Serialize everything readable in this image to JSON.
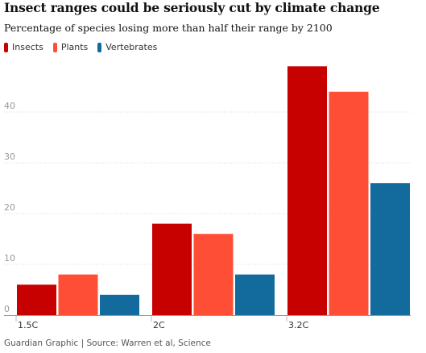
{
  "title": "Insect ranges could be seriously cut by climate change",
  "subtitle": "Percentage of species losing more than half their range by 2100",
  "footer": "Guardian Graphic | Source: Warren et al, Science",
  "chart_data": {
    "type": "bar",
    "title": "Insect ranges could be seriously cut by climate change",
    "subtitle": "Percentage of species losing more than half their range by 2100",
    "categories": [
      "1.5C",
      "2C",
      "3.2C"
    ],
    "series": [
      {
        "name": "Insects",
        "color": "#c70000",
        "values": [
          6,
          18,
          49
        ]
      },
      {
        "name": "Plants",
        "color": "#ff4e36",
        "values": [
          8,
          16,
          44
        ]
      },
      {
        "name": "Vertebrates",
        "color": "#126b9c",
        "values": [
          4,
          8,
          26
        ]
      }
    ],
    "yticks": [
      0,
      10,
      20,
      30,
      40
    ],
    "ylim": [
      0,
      50
    ],
    "grid": true,
    "legend": "top-left",
    "xlabel": "",
    "ylabel": ""
  }
}
